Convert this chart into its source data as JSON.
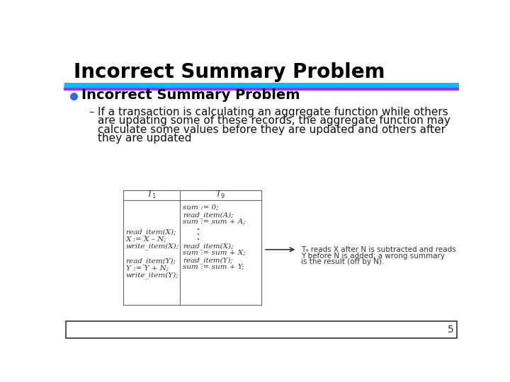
{
  "title": "Incorrect Summary Problem",
  "title_fontsize": 20,
  "title_color": "#000000",
  "line1_color": "#00BFFF",
  "line2_color": "#9B30FF",
  "bullet_heading": "Incorrect Summary Problem",
  "bullet_heading_fontsize": 14,
  "bullet_color": "#3366FF",
  "dash_text_lines": [
    "If a transaction is calculating an aggregate function while others",
    "are updating some of these records, the aggregate function may",
    "calculate some values before they are updated and others after",
    "they are updated"
  ],
  "dash_text_fontsize": 11,
  "dash_text_color": "#111111",
  "page_number": "5",
  "background_color": "#FFFFFF",
  "t9_top": [
    "sum := 0;",
    "read_item(A);",
    "sum := sum + A;"
  ],
  "t1_mid": [
    "read_item(X);",
    "X := X – N;",
    "write_item(X);"
  ],
  "t9_bot": [
    "read_item(X);",
    "sum := sum + X;",
    "read_item(Y);",
    "sum := sum + Y;"
  ],
  "t1_bot": [
    "read_item(Y);",
    "Y := Y + N;",
    "write_item(Y);"
  ],
  "arrow_note_lines": [
    "T₉ reads X after N is subtracted and reads",
    "Y before N is added; a wrong summary",
    "is the result (off by N)."
  ],
  "table_font_size": 7.5
}
